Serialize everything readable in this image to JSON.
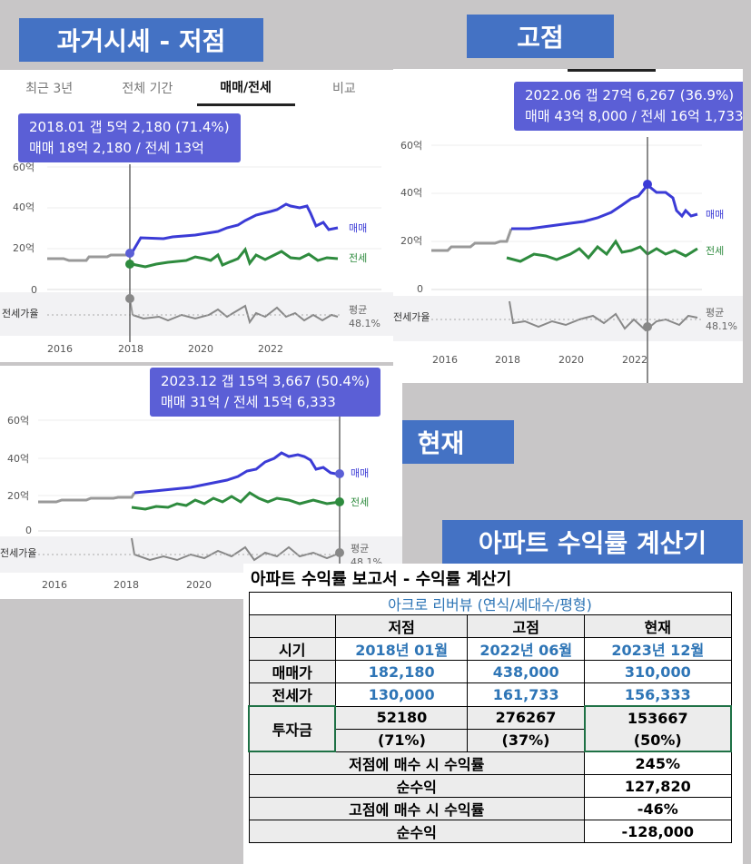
{
  "banners": {
    "low": "과거시세 - 저점",
    "high": "고점",
    "now": "현재",
    "calc": "아파트 수익률 계산기"
  },
  "tabs": [
    "최근 3년",
    "전체 기간",
    "매매/전세",
    "비교"
  ],
  "charts": {
    "low": {
      "tip1": "2018.01  갭 5억 2,180 (71.4%)",
      "tip2": "매매 18억 2,180 / 전세 13억"
    },
    "high": {
      "tip1": "2022.06  갭 27억 6,267 (36.9%)",
      "tip2": "매매 43억 8,000 / 전세 16억 1,733"
    },
    "now": {
      "tip1": "2023.12  갭 15억 3,667 (50.4%)",
      "tip2": "매매 31억 / 전세 15억 6,333"
    },
    "y_ticks": [
      "60억",
      "40억",
      "20억",
      "0"
    ],
    "x_ticks": [
      "2016",
      "2018",
      "2020",
      "2022"
    ],
    "labels": {
      "sale": "매매",
      "jeonse": "전세",
      "ratio": "전세가율",
      "avg": "평균",
      "avg_val": "48.1%"
    },
    "colors": {
      "sale": "#3b3bd6",
      "jeonse": "#2e8b3e",
      "ratio": "#888888",
      "tip": "#5b5fd6"
    }
  },
  "calc": {
    "title": "아파트 수익률 보고서 - 수익률 계산기",
    "subtitle": "아크로 리버뷰 (연식/세대수/평형)",
    "headers": [
      "저점",
      "고점",
      "현재"
    ],
    "rows": [
      {
        "label": "시기",
        "values": [
          "2018년 01월",
          "2022년 06월",
          "2023년 12월"
        ]
      },
      {
        "label": "매매가",
        "values": [
          "182,180",
          "438,000",
          "310,000"
        ]
      },
      {
        "label": "전세가",
        "values": [
          "130,000",
          "161,733",
          "156,333"
        ]
      }
    ],
    "invest": {
      "label": "투자금",
      "amounts": [
        "52180",
        "276267",
        "153667"
      ],
      "pcts": [
        "(71%)",
        "(37%)",
        "(50%)"
      ]
    },
    "summary": [
      {
        "label": "저점에 매수 시 수익률",
        "value": "245%"
      },
      {
        "label": "순수익",
        "value": "127,820"
      },
      {
        "label": "고점에 매수 시 수익률",
        "value": "-46%"
      },
      {
        "label": "순수익",
        "value": "-128,000"
      }
    ]
  }
}
